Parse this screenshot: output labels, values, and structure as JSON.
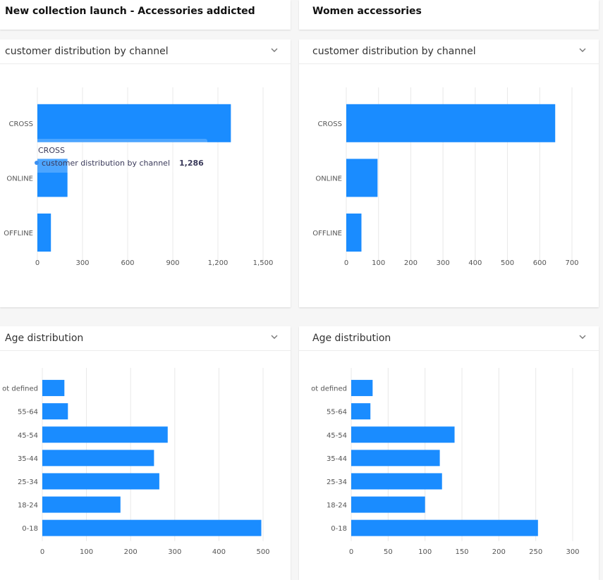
{
  "panels": [
    {
      "title": "New collection launch - Accessories addicted",
      "charts": [
        {
          "header": "customer distribution by channel",
          "chart_data": {
            "type": "bar",
            "orientation": "horizontal",
            "categories": [
              "CROSS",
              "ONLINE",
              "OFFLINE"
            ],
            "series": [
              {
                "name": "customer distribution by channel",
                "values": [
                  1286,
                  200,
                  90
                ]
              }
            ],
            "xlim": [
              0,
              1500
            ],
            "xticks": [
              0,
              300,
              600,
              900,
              1200,
              1500
            ],
            "xtick_labels": [
              "0",
              "300",
              "600",
              "900",
              "1,200",
              "1,500"
            ],
            "grid": true
          },
          "tooltip": {
            "category": "CROSS",
            "series": "customer distribution by channel",
            "value": "1,286"
          }
        },
        {
          "header": "Age distribution",
          "chart_data": {
            "type": "bar",
            "orientation": "horizontal",
            "categories": [
              "ot defined",
              "55-64",
              "45-54",
              "35-44",
              "25-34",
              "18-24",
              "0-18"
            ],
            "series": [
              {
                "values": [
                  50,
                  58,
                  284,
                  253,
                  265,
                  177,
                  496
                ]
              }
            ],
            "xlim": [
              0,
              500
            ],
            "xticks": [
              0,
              100,
              200,
              300,
              400,
              500
            ],
            "xtick_labels": [
              "0",
              "100",
              "200",
              "300",
              "400",
              "500"
            ],
            "grid": true
          }
        }
      ]
    },
    {
      "title": "Women accessories",
      "charts": [
        {
          "header": "customer distribution by channel",
          "chart_data": {
            "type": "bar",
            "orientation": "horizontal",
            "categories": [
              "CROSS",
              "ONLINE",
              "OFFLINE"
            ],
            "series": [
              {
                "values": [
                  648,
                  97,
                  47
                ]
              }
            ],
            "xlim": [
              0,
              700
            ],
            "xticks": [
              0,
              100,
              200,
              300,
              400,
              500,
              600,
              700
            ],
            "xtick_labels": [
              "0",
              "100",
              "200",
              "300",
              "400",
              "500",
              "600",
              "700"
            ],
            "grid": true
          }
        },
        {
          "header": "Age distribution",
          "chart_data": {
            "type": "bar",
            "orientation": "horizontal",
            "categories": [
              "ot defined",
              "55-64",
              "45-54",
              "35-44",
              "25-34",
              "18-24",
              "0-18"
            ],
            "series": [
              {
                "values": [
                  29,
                  26,
                  140,
                  120,
                  123,
                  100,
                  253
                ]
              }
            ],
            "xlim": [
              0,
              300
            ],
            "xticks": [
              0,
              50,
              100,
              150,
              200,
              250,
              300
            ],
            "xtick_labels": [
              "0",
              "50",
              "100",
              "150",
              "200",
              "250",
              "300"
            ],
            "grid": true
          }
        }
      ]
    }
  ],
  "colors": {
    "bar": "#1a8cff",
    "grid": "#e8e8e8",
    "axis_text": "#555555"
  },
  "icons": {
    "collapse": "chevron-down-icon"
  }
}
